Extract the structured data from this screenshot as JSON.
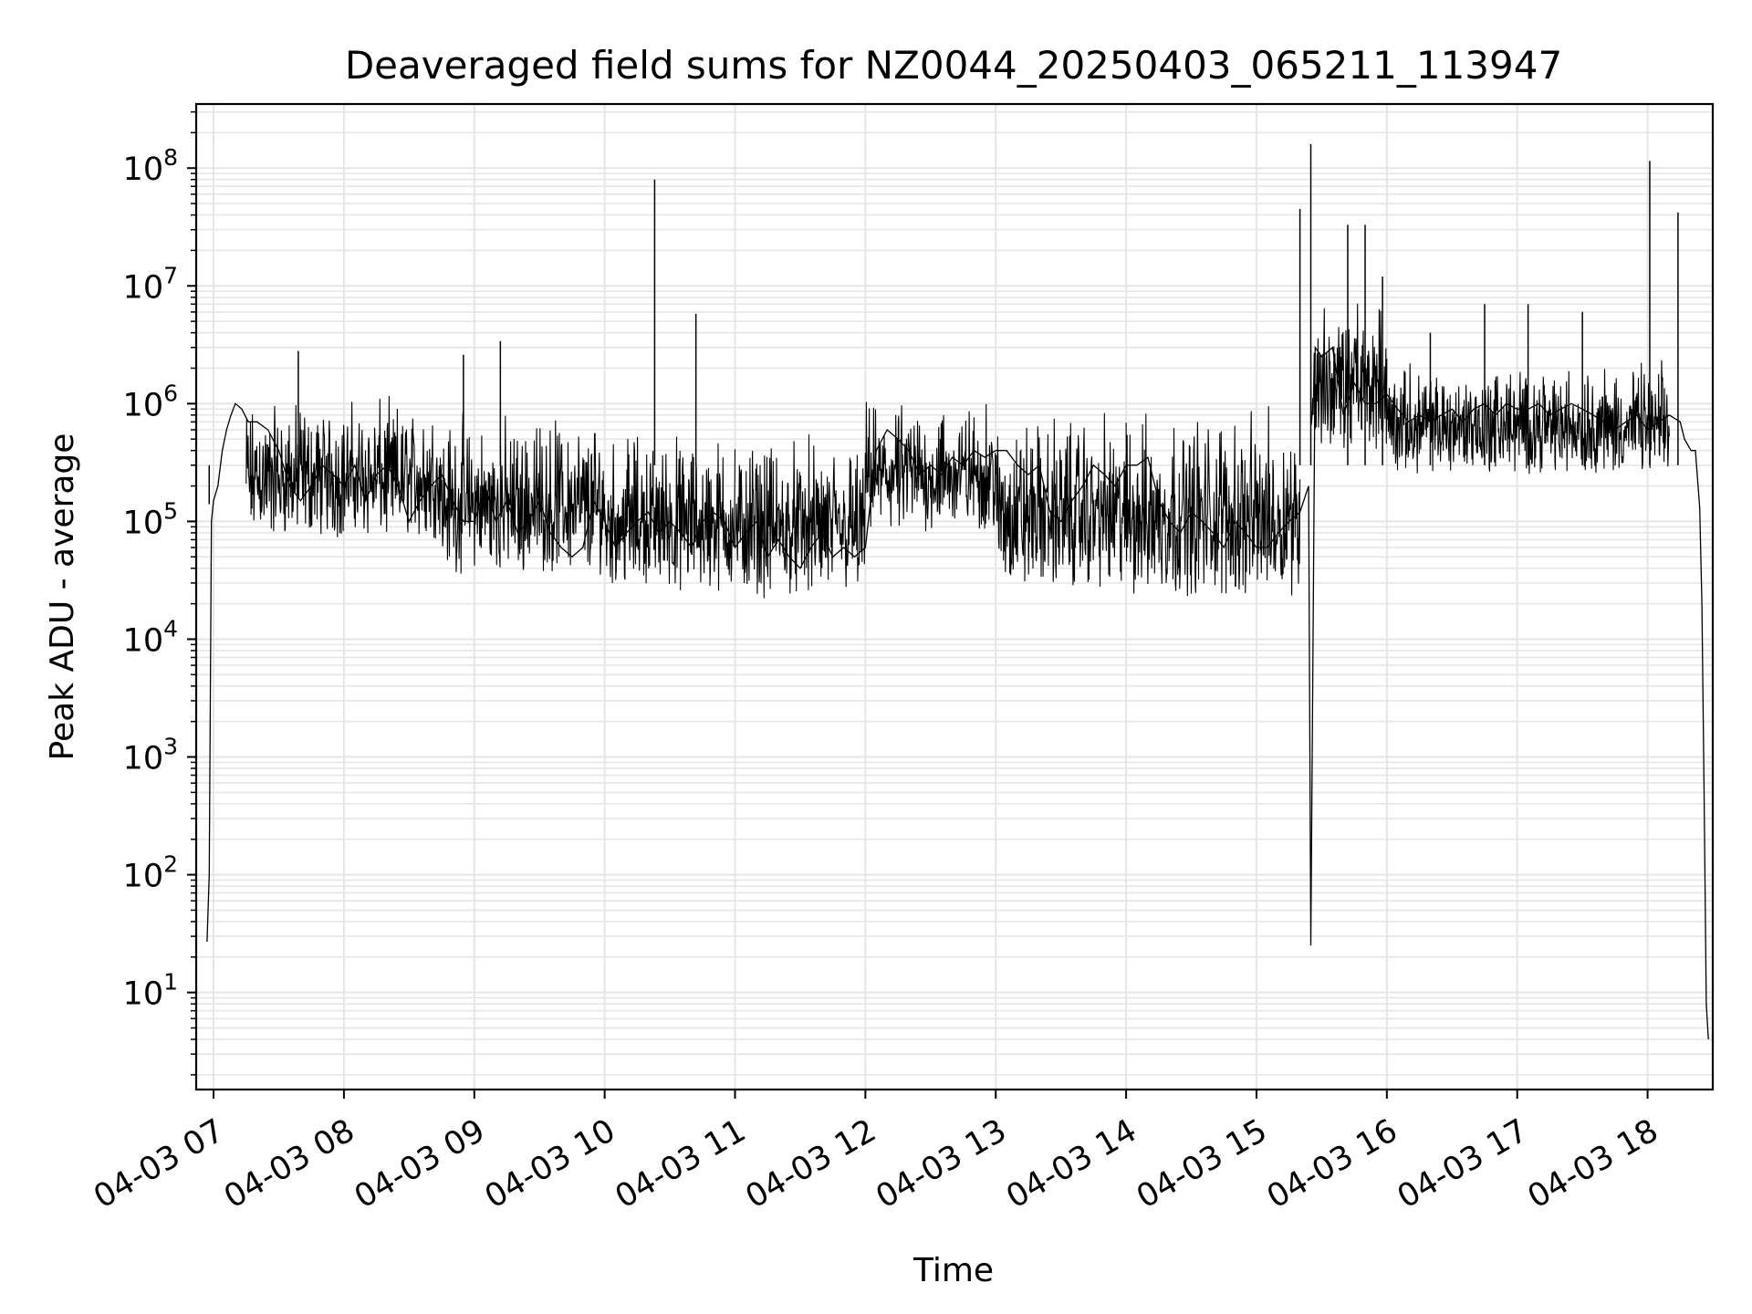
{
  "chart_data": {
    "type": "line",
    "title": "Deaveraged field sums for NZ0044_20250403_065211_113947",
    "xlabel": "Time",
    "ylabel": "Peak ADU - average",
    "y_scale": "log",
    "ylim": [
      1.5,
      350000000
    ],
    "xlim": [
      "2025-04-03 06:52",
      "2025-04-03 18:30"
    ],
    "x_ticks": [
      "04-03 07",
      "04-03 08",
      "04-03 09",
      "04-03 10",
      "04-03 11",
      "04-03 12",
      "04-03 13",
      "04-03 14",
      "04-03 15",
      "04-03 16",
      "04-03 17",
      "04-03 18"
    ],
    "y_ticks": [
      {
        "base": "10",
        "exp": "1"
      },
      {
        "base": "10",
        "exp": "2"
      },
      {
        "base": "10",
        "exp": "3"
      },
      {
        "base": "10",
        "exp": "4"
      },
      {
        "base": "10",
        "exp": "5"
      },
      {
        "base": "10",
        "exp": "6"
      },
      {
        "base": "10",
        "exp": "7"
      },
      {
        "base": "10",
        "exp": "8"
      }
    ],
    "grid": true,
    "line_color": "#000000",
    "grid_color": "#e5e5e5",
    "series": [
      {
        "x": [
          "06:57",
          "06:58",
          "06:59",
          "07:00",
          "07:02",
          "07:04",
          "07:06",
          "07:08",
          "07:10",
          "07:13",
          "07:16",
          "07:20",
          "07:25",
          "07:30",
          "07:35",
          "07:40",
          "07:45",
          "07:50",
          "07:55",
          "08:00",
          "08:05",
          "08:10",
          "08:15",
          "08:20",
          "08:25",
          "08:30",
          "08:35",
          "08:40",
          "08:45",
          "08:50",
          "08:55",
          "09:00",
          "09:05",
          "09:10",
          "09:15",
          "09:20",
          "09:25",
          "09:30",
          "09:35",
          "09:40",
          "09:45",
          "09:50",
          "09:55",
          "10:00",
          "10:05",
          "10:10",
          "10:15",
          "10:20",
          "10:25",
          "10:30",
          "10:35",
          "10:40",
          "10:45",
          "10:50",
          "10:55",
          "11:00",
          "11:05",
          "11:10",
          "11:15",
          "11:20",
          "11:25",
          "11:30",
          "11:35",
          "11:40",
          "11:45",
          "11:50",
          "11:55",
          "12:00",
          "12:05",
          "12:10",
          "12:15",
          "12:20",
          "12:25",
          "12:30",
          "12:35",
          "12:40",
          "12:45",
          "12:50",
          "12:55",
          "13:00",
          "13:05",
          "13:10",
          "13:15",
          "13:20",
          "13:25",
          "13:30",
          "13:35",
          "13:40",
          "13:45",
          "13:50",
          "13:55",
          "14:00",
          "14:05",
          "14:10",
          "14:15",
          "14:20",
          "14:25",
          "14:30",
          "14:35",
          "14:40",
          "14:45",
          "14:50",
          "14:55",
          "15:00",
          "15:05",
          "15:10",
          "15:15",
          "15:20",
          "15:24",
          "15:25",
          "15:27",
          "15:30",
          "15:35",
          "15:40",
          "15:45",
          "15:50",
          "15:55",
          "16:00",
          "16:05",
          "16:10",
          "16:15",
          "16:20",
          "16:25",
          "16:30",
          "16:35",
          "16:40",
          "16:45",
          "16:50",
          "16:55",
          "17:00",
          "17:05",
          "17:10",
          "17:15",
          "17:20",
          "17:25",
          "17:30",
          "17:35",
          "17:40",
          "17:45",
          "17:50",
          "17:55",
          "18:00",
          "18:05",
          "18:10",
          "18:15",
          "18:17",
          "18:20",
          "18:22",
          "18:24",
          "18:25",
          "18:26",
          "18:27",
          "18:28"
        ],
        "y": [
          27,
          100,
          100000,
          150000,
          200000,
          400000,
          600000,
          800000,
          1000000,
          900000,
          700000,
          700000,
          600000,
          400000,
          200000,
          150000,
          200000,
          300000,
          250000,
          200000,
          300000,
          150000,
          250000,
          300000,
          200000,
          100000,
          150000,
          200000,
          250000,
          150000,
          100000,
          100000,
          200000,
          100000,
          150000,
          80000,
          100000,
          150000,
          80000,
          60000,
          50000,
          60000,
          150000,
          100000,
          60000,
          80000,
          100000,
          120000,
          80000,
          100000,
          80000,
          60000,
          100000,
          120000,
          100000,
          60000,
          80000,
          100000,
          50000,
          70000,
          50000,
          40000,
          60000,
          80000,
          50000,
          60000,
          50000,
          60000,
          400000,
          600000,
          500000,
          400000,
          250000,
          300000,
          250000,
          350000,
          300000,
          400000,
          350000,
          400000,
          400000,
          300000,
          250000,
          300000,
          120000,
          100000,
          150000,
          200000,
          300000,
          250000,
          200000,
          300000,
          300000,
          350000,
          150000,
          100000,
          80000,
          120000,
          100000,
          80000,
          60000,
          100000,
          80000,
          60000,
          60000,
          80000,
          100000,
          120000,
          200000,
          25,
          3000000,
          2500000,
          3000000,
          800000,
          1500000,
          1000000,
          1000000,
          1200000,
          900000,
          700000,
          800000,
          700000,
          800000,
          900000,
          700000,
          900000,
          1000000,
          800000,
          1000000,
          900000,
          900000,
          1000000,
          800000,
          900000,
          1000000,
          900000,
          800000,
          700000,
          600000,
          700000,
          800000,
          600000,
          700000,
          800000,
          700000,
          500000,
          400000,
          400000,
          130000,
          20000,
          500,
          8,
          4
        ],
        "spikes": [
          {
            "x": "06:58",
            "y": 140000
          },
          {
            "x": "07:39",
            "y": 2800000
          },
          {
            "x": "08:55",
            "y": 2600000
          },
          {
            "x": "09:12",
            "y": 3400000
          },
          {
            "x": "10:23",
            "y": 80000000
          },
          {
            "x": "10:42",
            "y": 5800000
          },
          {
            "x": "15:20",
            "y": 45000000
          },
          {
            "x": "15:25",
            "y": 160000000
          },
          {
            "x": "15:42",
            "y": 33000000
          },
          {
            "x": "15:50",
            "y": 33000000
          },
          {
            "x": "15:58",
            "y": 12000000
          },
          {
            "x": "16:20",
            "y": 4000000
          },
          {
            "x": "16:45",
            "y": 7000000
          },
          {
            "x": "17:05",
            "y": 7000000
          },
          {
            "x": "17:30",
            "y": 6000000
          },
          {
            "x": "18:01",
            "y": 115000000
          },
          {
            "x": "18:14",
            "y": 42000000
          }
        ],
        "noise_band": [
          {
            "from": "07:15",
            "to": "08:45",
            "low": 70000,
            "high": 1300000
          },
          {
            "from": "08:45",
            "to": "10:00",
            "low": 35000,
            "high": 1000000
          },
          {
            "from": "10:00",
            "to": "11:00",
            "low": 25000,
            "high": 700000
          },
          {
            "from": "11:00",
            "to": "12:00",
            "low": 22000,
            "high": 600000
          },
          {
            "from": "12:00",
            "to": "13:00",
            "low": 80000,
            "high": 1200000
          },
          {
            "from": "13:00",
            "to": "14:00",
            "low": 25000,
            "high": 1000000
          },
          {
            "from": "14:00",
            "to": "15:20",
            "low": 22000,
            "high": 1100000
          },
          {
            "from": "15:25",
            "to": "16:00",
            "low": 400000,
            "high": 9000000
          },
          {
            "from": "16:00",
            "to": "18:10",
            "low": 250000,
            "high": 2500000
          }
        ]
      }
    ]
  }
}
